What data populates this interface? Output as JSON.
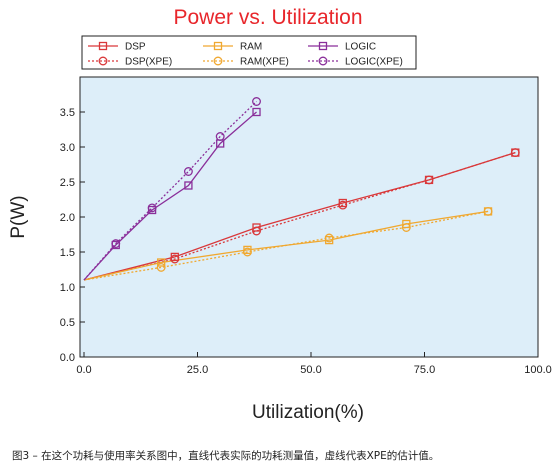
{
  "caption": "图3 – 在这个功耗与使用率关系图中，直线代表实际的功耗测量值，虚线代表XPE的估计值。",
  "chart_data": {
    "type": "line",
    "title": "Power vs. Utilization",
    "xlabel": "Utilization(%)",
    "ylabel": "P(W)",
    "xlim": [
      0,
      100
    ],
    "ylim": [
      0,
      4.0
    ],
    "xticks": [
      "0.0",
      "25.0",
      "50.0",
      "75.0",
      "100.0"
    ],
    "yticks": [
      "0.0",
      "0.5",
      "1.0",
      "1.5",
      "2.0",
      "2.5",
      "3.0",
      "3.5"
    ],
    "grid": false,
    "legend_position": "top",
    "series": [
      {
        "name": "DSP",
        "color": "#d9383a",
        "style": "solid",
        "marker": "square",
        "x": [
          0,
          20,
          38,
          57,
          76,
          95
        ],
        "y": [
          1.1,
          1.43,
          1.85,
          2.2,
          2.53,
          2.92
        ]
      },
      {
        "name": "DSP(XPE)",
        "color": "#d9383a",
        "style": "dotted",
        "marker": "circle",
        "x": [
          0,
          20,
          38,
          57,
          76,
          95
        ],
        "y": [
          1.1,
          1.4,
          1.8,
          2.17,
          2.53,
          2.92
        ]
      },
      {
        "name": "RAM",
        "color": "#f0a830",
        "style": "solid",
        "marker": "square",
        "x": [
          0,
          17,
          36,
          54,
          71,
          89
        ],
        "y": [
          1.1,
          1.35,
          1.53,
          1.67,
          1.9,
          2.08
        ]
      },
      {
        "name": "RAM(XPE)",
        "color": "#f0a830",
        "style": "dotted",
        "marker": "circle",
        "x": [
          0,
          17,
          36,
          54,
          71,
          89
        ],
        "y": [
          1.1,
          1.28,
          1.5,
          1.7,
          1.85,
          2.08
        ]
      },
      {
        "name": "LOGIC",
        "color": "#8a2f9a",
        "style": "solid",
        "marker": "square",
        "x": [
          0,
          7,
          15,
          23,
          30,
          38
        ],
        "y": [
          1.1,
          1.6,
          2.1,
          2.45,
          3.05,
          3.5
        ]
      },
      {
        "name": "LOGIC(XPE)",
        "color": "#8a2f9a",
        "style": "dotted",
        "marker": "circle",
        "x": [
          0,
          7,
          15,
          23,
          30,
          38
        ],
        "y": [
          1.1,
          1.62,
          2.13,
          2.65,
          3.15,
          3.65
        ]
      }
    ]
  }
}
